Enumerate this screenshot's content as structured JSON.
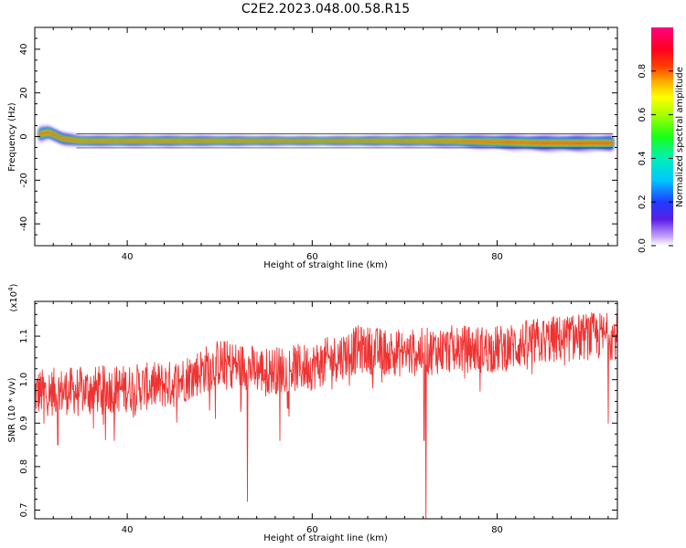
{
  "figure_title": "C2E2.2023.048.00.58.R15",
  "chart_data": [
    {
      "type": "heatmap",
      "title": "",
      "xlabel": "Height of straight line (km)",
      "ylabel": "Frequency (Hz)",
      "xlim": [
        30,
        93
      ],
      "ylim": [
        -50,
        50
      ],
      "xticks": [
        40,
        60,
        80
      ],
      "yticks": [
        -40,
        -20,
        0,
        20,
        40
      ],
      "band_center_frequency": [
        [
          30.5,
          1
        ],
        [
          31.5,
          2
        ],
        [
          33,
          -1
        ],
        [
          35,
          -2
        ],
        [
          40,
          -2
        ],
        [
          50,
          -2
        ],
        [
          60,
          -2
        ],
        [
          70,
          -2
        ],
        [
          75,
          -2
        ],
        [
          80,
          -2.5
        ],
        [
          85,
          -3
        ],
        [
          90,
          -3
        ],
        [
          92.5,
          -3
        ]
      ],
      "band_half_width": [
        [
          30.5,
          4
        ],
        [
          33,
          3
        ],
        [
          36,
          2.5
        ],
        [
          45,
          2.5
        ],
        [
          60,
          2
        ],
        [
          72,
          2.5
        ],
        [
          76,
          3
        ],
        [
          80,
          3.5
        ],
        [
          86,
          4
        ],
        [
          92.5,
          4
        ]
      ],
      "colorbar": {
        "label": "Normalized spectral amplitude",
        "range": [
          0.0,
          1.0
        ],
        "ticks": [
          "0.0",
          "0.2",
          "0.4",
          "0.6",
          "0.8"
        ],
        "colormap": "rainbow (purple-blue-cyan-green-yellow-red-magenta)"
      }
    },
    {
      "type": "line",
      "title": "",
      "xlabel": "Height of straight line (km)",
      "ylabel": "SNR (10 * v/v)",
      "y_multiplier": "(x10",
      "y_multiplier_exp": "4",
      "y_multiplier_close": ")",
      "xlim": [
        30,
        93
      ],
      "ylim": [
        0.68,
        1.18
      ],
      "xticks": [
        40,
        60,
        80
      ],
      "yticks": [
        "0.7",
        "0.8",
        "0.9",
        "1.0",
        "1.1"
      ],
      "series": [
        {
          "color": "#ee3333",
          "trend": [
            [
              30,
              0.97
            ],
            [
              40,
              0.98
            ],
            [
              45,
              0.99
            ],
            [
              50,
              1.04
            ],
            [
              55,
              1.02
            ],
            [
              60,
              1.03
            ],
            [
              65,
              1.07
            ],
            [
              70,
              1.06
            ],
            [
              75,
              1.07
            ],
            [
              80,
              1.07
            ],
            [
              85,
              1.09
            ],
            [
              90,
              1.1
            ],
            [
              93,
              1.1
            ]
          ],
          "noise_amplitude": 0.055,
          "dips": [
            [
              31,
              0.9
            ],
            [
              32.5,
              0.85
            ],
            [
              53,
              0.72
            ],
            [
              56.5,
              0.86
            ],
            [
              72.1,
              0.86
            ],
            [
              72.3,
              0.67
            ],
            [
              92,
              0.9
            ]
          ]
        }
      ]
    }
  ]
}
